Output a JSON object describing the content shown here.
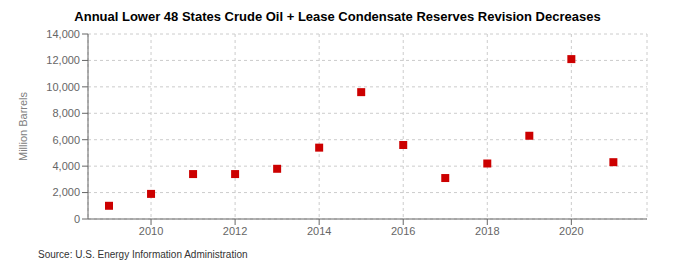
{
  "chart_data": {
    "type": "scatter",
    "title": "Annual Lower 48 States Crude Oil + Lease Condensate Reserves Revision Decreases",
    "ylabel": "Million Barrels",
    "annotation": "Source: U.S. Energy Information Administration",
    "x": [
      2009,
      2010,
      2011,
      2012,
      2013,
      2014,
      2015,
      2016,
      2017,
      2018,
      2019,
      2020,
      2021
    ],
    "values": [
      1000,
      1900,
      3400,
      3400,
      3800,
      5400,
      9600,
      5600,
      3100,
      4200,
      6300,
      12100,
      4300
    ],
    "color": "#cc0000",
    "marker": "square",
    "xlim": [
      2008.5,
      2021.8
    ],
    "xticks": [
      2010,
      2012,
      2014,
      2016,
      2018,
      2020
    ],
    "ylim": [
      0,
      14000
    ],
    "yticks": [
      0,
      {
        "value": 2000,
        "label": "2,000"
      },
      {
        "value": 4000,
        "label": "4,000"
      },
      {
        "value": 6000,
        "label": "6,000"
      },
      {
        "value": 8000,
        "label": "8,000"
      },
      {
        "value": 10000,
        "label": "10,000"
      },
      {
        "value": 12000,
        "label": "12,000"
      },
      {
        "value": 14000,
        "label": "14,000"
      }
    ],
    "grid": true
  }
}
